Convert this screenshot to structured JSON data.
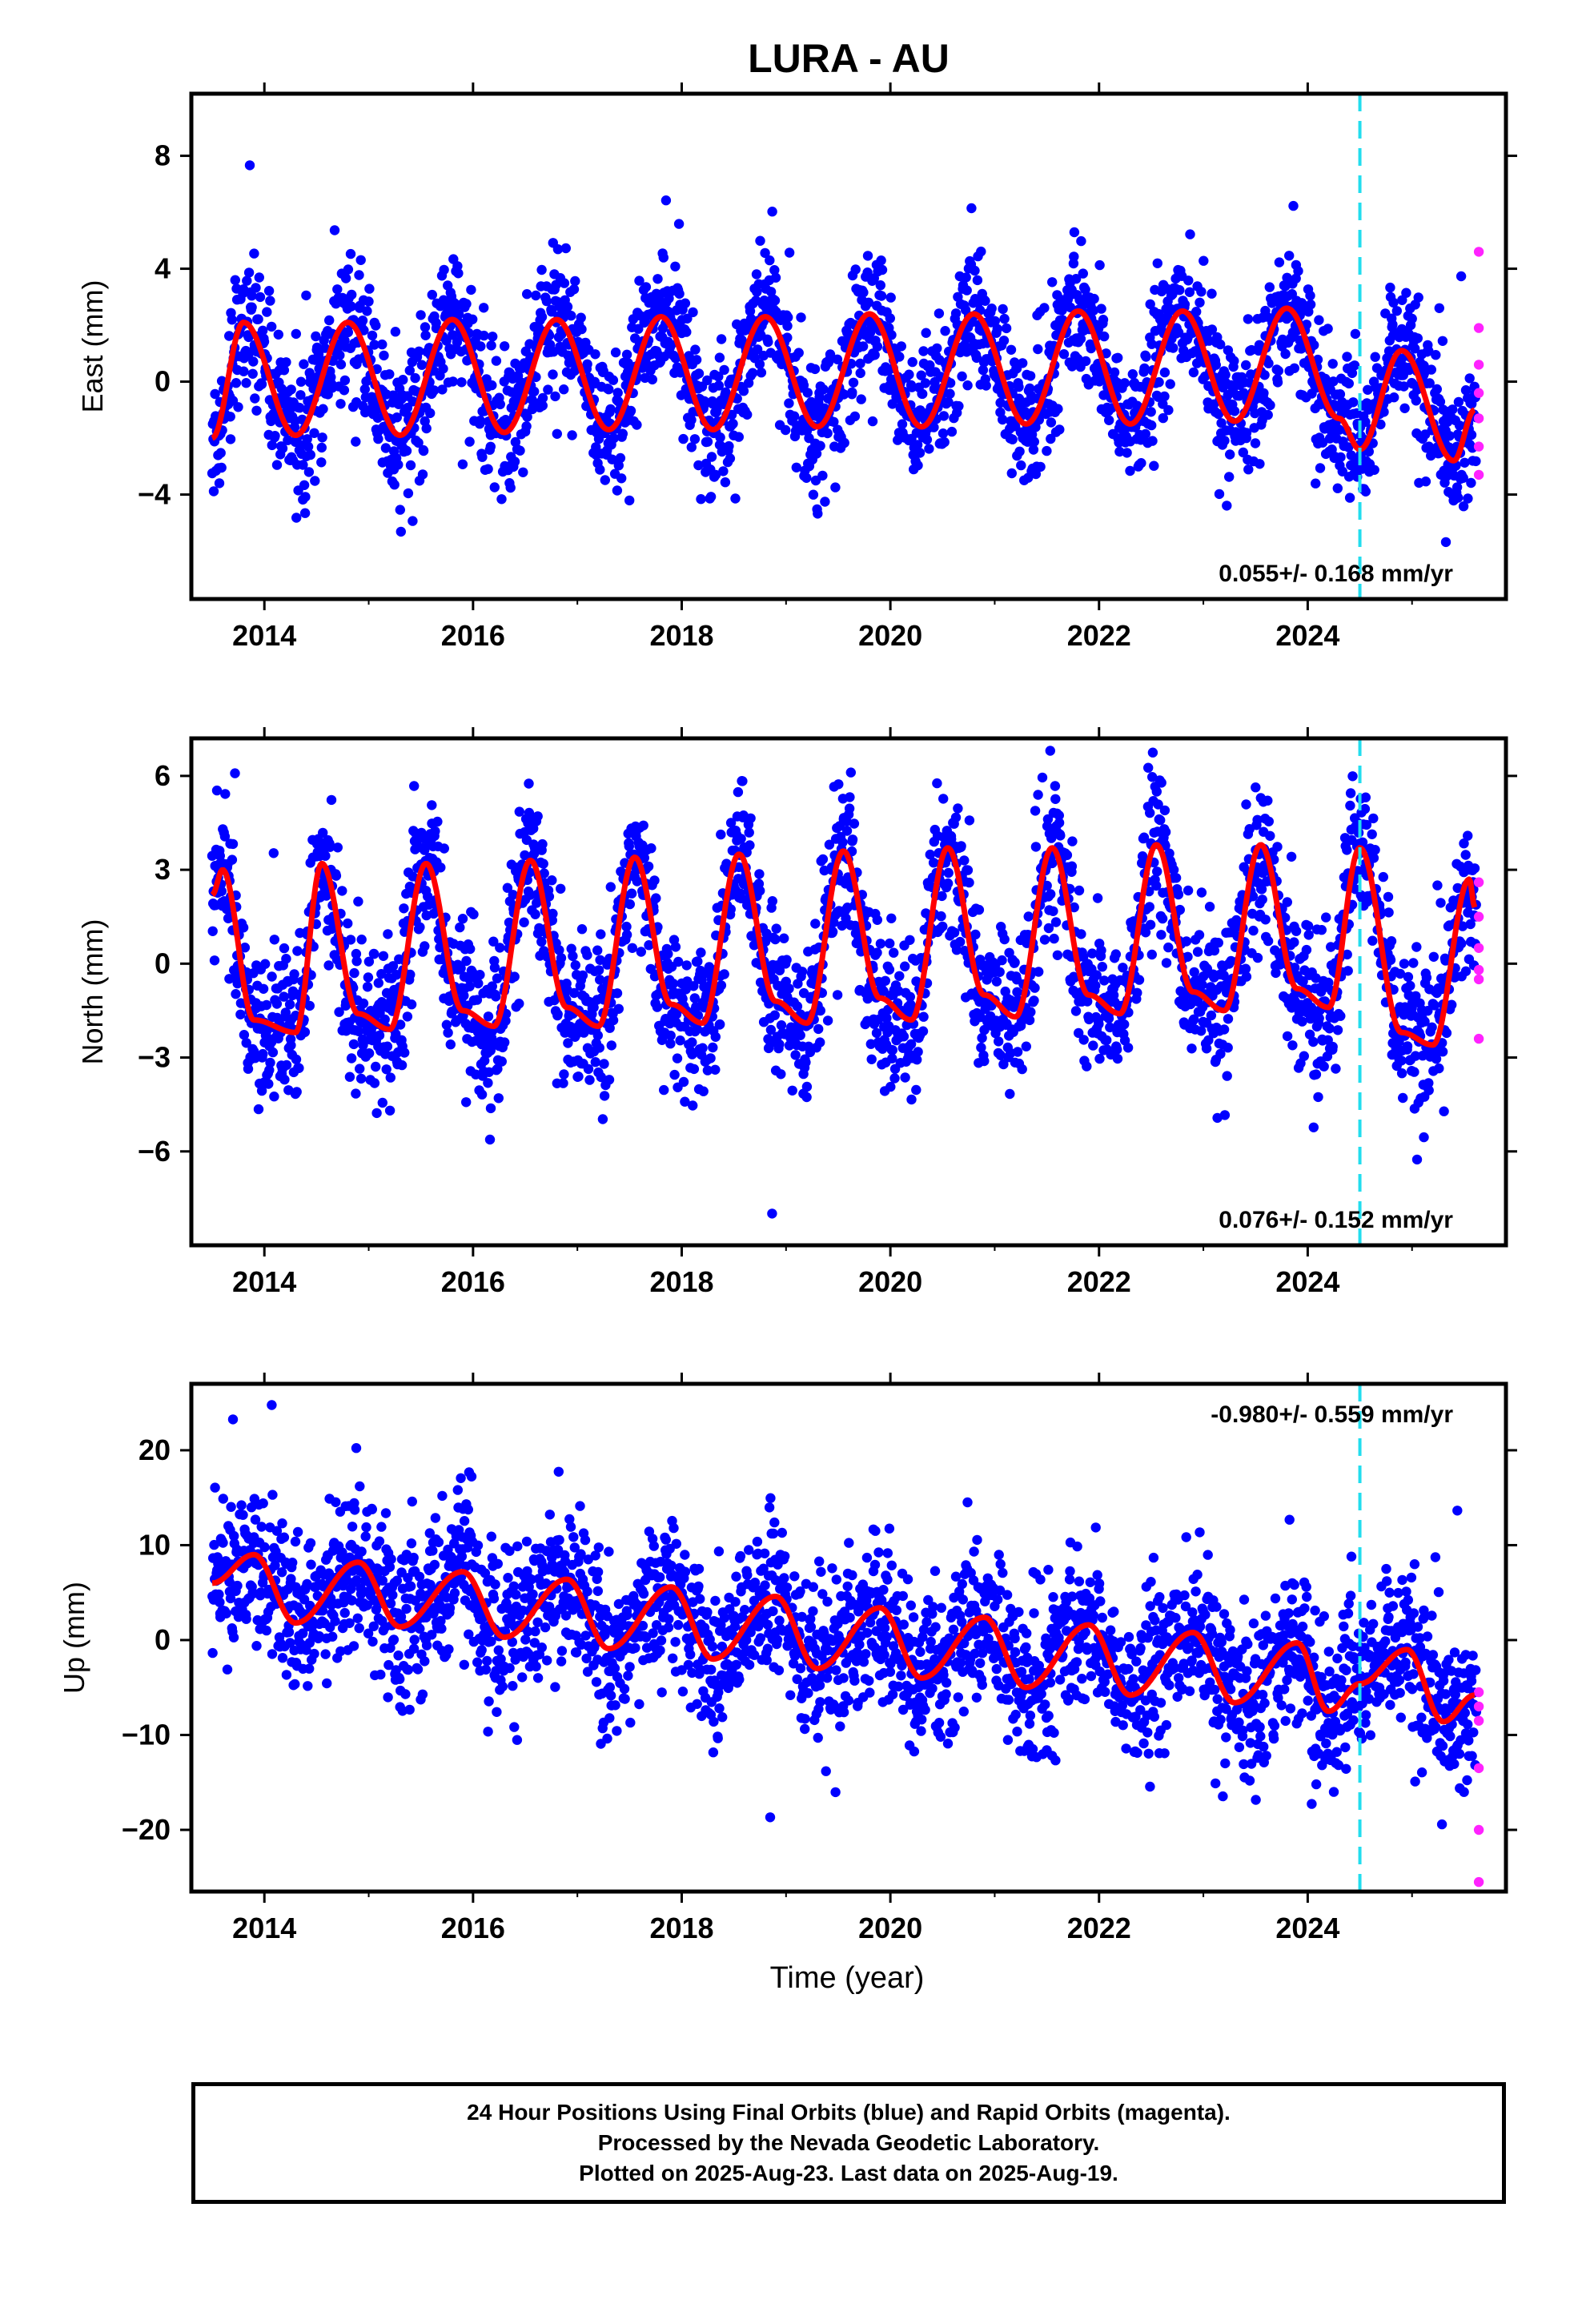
{
  "title": "LURA - AU",
  "xlabel": "Time (year)",
  "colors": {
    "final_orbits": "#0000ff",
    "rapid_orbits": "#ff22ff",
    "model": "#ff0000",
    "event_line": "#22ddee"
  },
  "footer": {
    "line1": "24 Hour Positions Using Final Orbits (blue) and Rapid Orbits (magenta).",
    "line2": "Processed by the Nevada Geodetic Laboratory.",
    "line3": "Plotted on 2025-Aug-23. Last data on 2025-Aug-19."
  },
  "chart_data": [
    {
      "type": "scatter",
      "component": "East",
      "ylabel": "East (mm)",
      "xlim": [
        2013.3,
        2025.9
      ],
      "ylim": [
        -7.7,
        10.2
      ],
      "xticks": [
        2014,
        2016,
        2018,
        2020,
        2022,
        2024
      ],
      "yticks": [
        -4,
        0,
        4,
        8
      ],
      "rate_label": "0.055+/- 0.168 mm/yr",
      "rate_position": "bottom-right",
      "event_line_x": 2024.5,
      "model": {
        "annual_amp": 2.0,
        "annual_phase_peak": 0.82,
        "semiannual_amp": 0.15,
        "scatter_sd": 1.2
      },
      "model_curve": {
        "x": [
          2013.5,
          2013.8,
          2014.3,
          2014.8,
          2015.3,
          2015.8,
          2016.3,
          2016.8,
          2017.3,
          2017.8,
          2018.3,
          2018.8,
          2019.3,
          2019.8,
          2020.3,
          2020.8,
          2021.3,
          2021.8,
          2022.3,
          2022.8,
          2023.3,
          2023.8,
          2024.3,
          2024.5,
          2024.9,
          2025.4,
          2025.6
        ],
        "y": [
          -2.0,
          2.1,
          -1.9,
          2.1,
          -1.9,
          2.2,
          -1.8,
          2.2,
          -1.7,
          2.3,
          -1.7,
          2.3,
          -1.6,
          2.4,
          -1.6,
          2.4,
          -1.5,
          2.5,
          -1.5,
          2.5,
          -1.4,
          2.6,
          -1.3,
          -2.4,
          1.1,
          -2.8,
          -1.0
        ]
      },
      "rapid_points": [
        4.6,
        1.9,
        0.6,
        -0.4,
        -1.3,
        -2.3,
        -3.3
      ]
    },
    {
      "type": "scatter",
      "component": "North",
      "ylabel": "North (mm)",
      "xlim": [
        2013.3,
        2025.9
      ],
      "ylim": [
        -9.0,
        7.2
      ],
      "xticks": [
        2014,
        2016,
        2018,
        2020,
        2022,
        2024
      ],
      "yticks": [
        -6,
        -3,
        0,
        3,
        6
      ],
      "rate_label": "0.076+/- 0.152 mm/yr",
      "rate_position": "bottom-right",
      "event_line_x": 2024.5,
      "model_curve": {
        "x": [
          2013.5,
          2013.6,
          2013.9,
          2014.3,
          2014.55,
          2014.9,
          2015.2,
          2015.55,
          2015.9,
          2016.2,
          2016.55,
          2016.9,
          2017.2,
          2017.55,
          2017.9,
          2018.2,
          2018.55,
          2018.9,
          2019.2,
          2019.55,
          2019.9,
          2020.2,
          2020.55,
          2020.9,
          2021.2,
          2021.55,
          2021.9,
          2022.2,
          2022.55,
          2022.9,
          2023.2,
          2023.55,
          2023.9,
          2024.2,
          2024.5,
          2024.9,
          2025.2,
          2025.55,
          2025.6
        ],
        "y": [
          2.2,
          3.0,
          -1.8,
          -2.2,
          3.2,
          -1.6,
          -2.1,
          3.2,
          -1.5,
          -2.0,
          3.3,
          -1.4,
          -2.0,
          3.4,
          -1.3,
          -1.9,
          3.5,
          -1.2,
          -1.9,
          3.6,
          -1.1,
          -1.8,
          3.7,
          -1.0,
          -1.7,
          3.7,
          -1.0,
          -1.6,
          3.8,
          -0.9,
          -1.5,
          3.8,
          -0.8,
          -1.4,
          3.7,
          -2.2,
          -2.6,
          2.7,
          1.8
        ]
      },
      "rapid_points": [
        2.6,
        1.5,
        0.5,
        -0.2,
        -0.5,
        -2.4
      ]
    },
    {
      "type": "scatter",
      "component": "Up",
      "ylabel": "Up (mm)",
      "xlim": [
        2013.3,
        2025.9
      ],
      "ylim": [
        -26.5,
        27.0
      ],
      "xticks": [
        2014,
        2016,
        2018,
        2020,
        2022,
        2024
      ],
      "yticks": [
        -20,
        -10,
        0,
        10,
        20
      ],
      "rate_label": "-0.980+/- 0.559 mm/yr",
      "rate_position": "top-right",
      "event_line_x": 2024.5,
      "model_curve": {
        "x": [
          2013.5,
          2013.9,
          2014.3,
          2014.9,
          2015.3,
          2015.9,
          2016.3,
          2016.9,
          2017.3,
          2017.9,
          2018.3,
          2018.9,
          2019.3,
          2019.9,
          2020.3,
          2020.9,
          2021.3,
          2021.9,
          2022.3,
          2022.9,
          2023.3,
          2023.9,
          2024.2,
          2024.5,
          2024.95,
          2025.3,
          2025.6
        ],
        "y": [
          6.0,
          9.0,
          1.8,
          8.2,
          1.4,
          7.2,
          0.3,
          6.4,
          -0.9,
          5.6,
          -2.0,
          4.6,
          -3.0,
          3.4,
          -4.0,
          2.4,
          -5.0,
          1.6,
          -5.8,
          0.8,
          -6.6,
          -0.3,
          -7.5,
          -4.6,
          -1.0,
          -8.6,
          -5.8
        ]
      },
      "rapid_points": [
        -5.5,
        -7.0,
        -8.5,
        -13.5,
        -20.0,
        -25.5
      ]
    }
  ]
}
